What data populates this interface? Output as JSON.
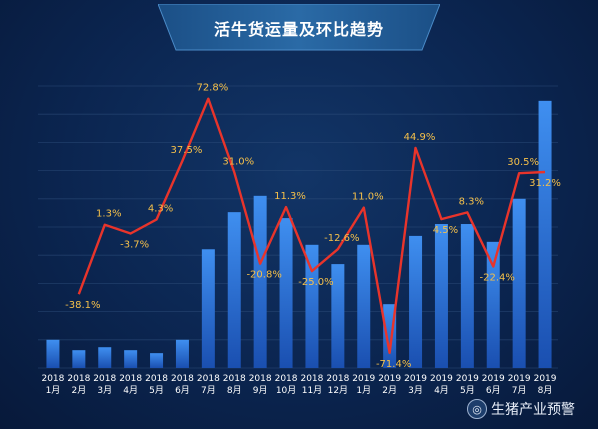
{
  "title": "活牛货运量及环比趋势",
  "watermark": {
    "text": "生猪产业预警",
    "icon": "wechat-icon"
  },
  "colors": {
    "bar_top": "#3f8ff0",
    "bar_bottom": "#1a4fb0",
    "line": "#e8342b",
    "label": "#f5c04a",
    "tick": "#ffffff",
    "banner": "#1d5a8c"
  },
  "chart_data": {
    "type": "bar+line",
    "title": "活牛货运量及环比趋势",
    "categories": [
      [
        "2018",
        "1月"
      ],
      [
        "2018",
        "2月"
      ],
      [
        "2018",
        "3月"
      ],
      [
        "2018",
        "4月"
      ],
      [
        "2018",
        "5月"
      ],
      [
        "2018",
        "6月"
      ],
      [
        "2018",
        "7月"
      ],
      [
        "2018",
        "8月"
      ],
      [
        "2018",
        "9月"
      ],
      [
        "2018",
        "10月"
      ],
      [
        "2018",
        "11月"
      ],
      [
        "2018",
        "12月"
      ],
      [
        "2019",
        "1月"
      ],
      [
        "2019",
        "2月"
      ],
      [
        "2019",
        "3月"
      ],
      [
        "2019",
        "4月"
      ],
      [
        "2019",
        "5月"
      ],
      [
        "2019",
        "6月"
      ],
      [
        "2019",
        "7月"
      ],
      [
        "2019",
        "8月"
      ]
    ],
    "series": [
      {
        "type": "bar",
        "values": [
          19,
          12,
          14,
          12,
          10,
          19,
          80,
          105,
          116,
          101,
          83,
          70,
          83,
          43,
          89,
          97,
          97,
          85,
          114,
          180
        ]
      },
      {
        "type": "line",
        "values": [
          null,
          -38.1,
          1.3,
          -3.7,
          4.3,
          37.5,
          72.8,
          31.0,
          -20.8,
          11.3,
          -25.0,
          -12.6,
          11.0,
          -71.4,
          44.9,
          4.5,
          8.3,
          -22.4,
          30.5,
          31.2
        ],
        "labels": [
          "",
          "-38.1%",
          "1.3%",
          "-3.7%",
          "4.3%",
          "37.5%",
          "72.8%",
          "31.0%",
          "-20.8%",
          "11.3%",
          "-25.0%",
          "-12.6%",
          "11.0%",
          "-71.4%",
          "44.9%",
          "4.5%",
          "8.3%",
          "-22.4%",
          "30.5%",
          "31.2%"
        ]
      }
    ],
    "grid": true
  }
}
